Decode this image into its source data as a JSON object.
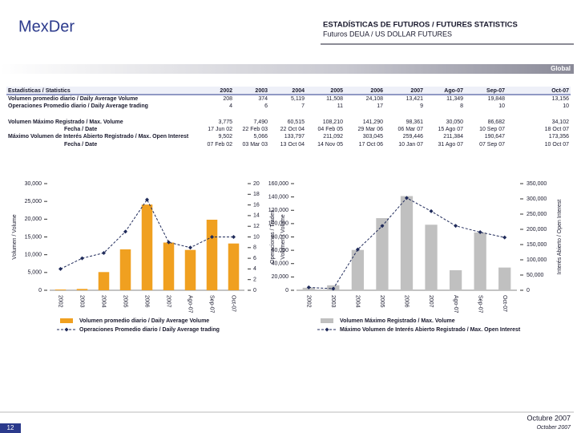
{
  "header": {
    "logo": "MexDer",
    "title": "ESTADÍSTICAS DE FUTUROS / FUTURES STATISTICS",
    "subtitle": "Futuros DEUA / US DOLLAR FUTURES",
    "band": "Global"
  },
  "table": {
    "columns": [
      "Estadísticas / Statistics",
      "2002",
      "2003",
      "2004",
      "2005",
      "2006",
      "2007",
      "Ago-07",
      "Sep-07",
      "Oct-07"
    ],
    "rows": [
      [
        "Volumen promedio diario / Daily Average Volume",
        "208",
        "374",
        "5,119",
        "11,508",
        "24,108",
        "13,421",
        "11,349",
        "19,848",
        "13,156"
      ],
      [
        "Operaciones Promedio diario / Daily Average trading",
        "4",
        "6",
        "7",
        "11",
        "17",
        "9",
        "8",
        "10",
        "10"
      ],
      [
        "Volumen Máximo Registrado / Max. Volume",
        "3,775",
        "7,490",
        "60,515",
        "108,210",
        "141,290",
        "98,361",
        "30,050",
        "86,682",
        "34,102"
      ],
      [
        "Fecha / Date",
        "17 Jun 02",
        "22 Feb 03",
        "22 Oct 04",
        "04 Feb 05",
        "29 Mar 06",
        "06 Mar 07",
        "15 Ago 07",
        "10 Sep 07",
        "18 Oct 07"
      ],
      [
        "Máximo Volumen de Interés Abierto Registrado / Max. Open Interest",
        "9,502",
        "5,066",
        "133,797",
        "211,092",
        "303,045",
        "259,446",
        "211,384",
        "190,647",
        "173,356"
      ],
      [
        "Fecha / Date",
        "07 Feb 02",
        "03 Mar 03",
        "13 Oct 04",
        "14 Nov 05",
        "17 Oct 06",
        "10 Jan 07",
        "31 Ago 07",
        "07 Sep 07",
        "10 Oct 07"
      ]
    ]
  },
  "chart_data": [
    {
      "type": "combo",
      "ylabel": "Volumen / Volume",
      "y2label": "Operaciones / Trades",
      "categories": [
        "2002",
        "2003",
        "2004",
        "2005",
        "2006",
        "2007",
        "Ago-07",
        "Sep-07",
        "Oct-07"
      ],
      "series": [
        {
          "name": "Volumen promedio diario / Daily Average Volume",
          "type": "bar",
          "color": "#f0a020",
          "values": [
            208,
            374,
            5119,
            11508,
            24108,
            13421,
            11349,
            19848,
            13156
          ]
        },
        {
          "name": "Operaciones Promedio diario / Daily Average trading",
          "type": "line",
          "axis": "y2",
          "color": "#1f2a5a",
          "values": [
            4,
            6,
            7,
            11,
            17,
            9,
            8,
            10,
            10
          ]
        }
      ],
      "ylim": [
        0,
        30000
      ],
      "yticks": [
        0,
        {
          "value": 5000,
          "label": "5,000"
        },
        {
          "value": 10000,
          "label": "10,000"
        },
        {
          "value": 15000,
          "label": "15,000"
        },
        {
          "value": 20000,
          "label": "20,000"
        },
        {
          "value": 25000,
          "label": "25,000"
        },
        {
          "value": 30000,
          "label": "30,000"
        }
      ],
      "y2lim": [
        0,
        20
      ],
      "y2ticks": [
        0,
        2,
        4,
        6,
        8,
        10,
        12,
        14,
        16,
        18,
        20
      ]
    },
    {
      "type": "combo",
      "ylabel": "Volumen / Volume",
      "y2label": "Interés Abierto / Open Interest",
      "categories": [
        "2002",
        "2003",
        "2004",
        "2005",
        "2006",
        "2007",
        "Ago-07",
        "Sep-07",
        "Oct-07"
      ],
      "series": [
        {
          "name": "Volumen Máximo Registrado / Max. Volume",
          "type": "bar",
          "color": "#c0c0c0",
          "values": [
            3775,
            7490,
            60515,
            108210,
            141290,
            98361,
            30050,
            86682,
            34102
          ]
        },
        {
          "name": "Máximo Volumen de Interés Abierto Registrado / Max. Open Interest",
          "type": "line",
          "axis": "y2",
          "color": "#1f2a5a",
          "values": [
            9502,
            5066,
            133797,
            211092,
            303045,
            259446,
            211384,
            190647,
            173356
          ]
        }
      ],
      "ylim": [
        0,
        160000
      ],
      "yticks": [
        0,
        {
          "value": 20000,
          "label": "20,000"
        },
        {
          "value": 40000,
          "label": "40,000"
        },
        {
          "value": 60000,
          "label": "60,000"
        },
        {
          "value": 80000,
          "label": "80,000"
        },
        {
          "value": 100000,
          "label": "100,000"
        },
        {
          "value": 120000,
          "label": "120,000"
        },
        {
          "value": 140000,
          "label": "140,000"
        },
        {
          "value": 160000,
          "label": "160,000"
        }
      ],
      "y2lim": [
        0,
        350000
      ],
      "y2ticks": [
        0,
        {
          "value": 50000,
          "label": "50,000"
        },
        {
          "value": 100000,
          "label": "100,000"
        },
        {
          "value": 150000,
          "label": "150,000"
        },
        {
          "value": 200000,
          "label": "200,000"
        },
        {
          "value": 250000,
          "label": "250,000"
        },
        {
          "value": 300000,
          "label": "300,000"
        },
        {
          "value": 350000,
          "label": "350,000"
        }
      ]
    }
  ],
  "footer": {
    "page": "12",
    "date_es": "Octubre 2007",
    "date_en": "October 2007"
  }
}
